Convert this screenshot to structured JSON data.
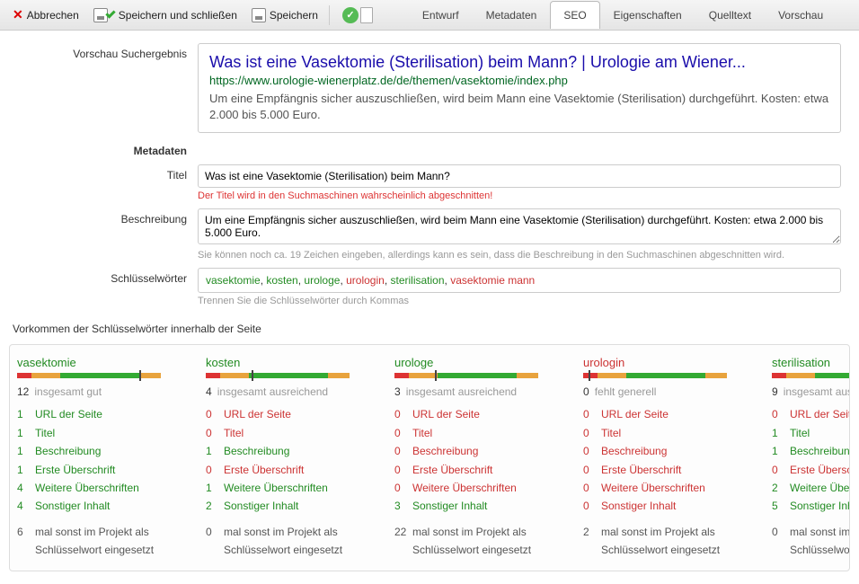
{
  "toolbar": {
    "cancel": "Abbrechen",
    "saveClose": "Speichern und schließen",
    "save": "Speichern"
  },
  "tabs": [
    "Entwurf",
    "Metadaten",
    "SEO",
    "Eigenschaften",
    "Quelltext",
    "Vorschau"
  ],
  "labels": {
    "previewResult": "Vorschau Suchergebnis",
    "metadata": "Metadaten",
    "title": "Titel",
    "description": "Beschreibung",
    "keywords": "Schlüsselwörter",
    "occurrences": "Vorkommen der Schlüsselwörter innerhalb der Seite"
  },
  "preview": {
    "title": "Was ist eine Vasektomie (Sterilisation) beim Mann? | Urologie am Wiener...",
    "url": "https://www.urologie-wienerplatz.de/de/themen/vasektomie/index.php",
    "desc": "Um eine Empfängnis sicher auszuschließen, wird beim Mann eine Vasektomie (Sterilisation) durchgeführt. Kosten: etwa 2.000 bis 5.000 Euro."
  },
  "fields": {
    "title": "Was ist eine Vasektomie (Sterilisation) beim Mann?",
    "titleHint": "Der Titel wird in den Suchmaschinen wahrscheinlich abgeschnitten!",
    "desc": "Um eine Empfängnis sicher auszuschließen, wird beim Mann eine Vasektomie (Sterilisation) durchgeführt. Kosten: etwa 2.000 bis 5.000 Euro.",
    "descHint": "Sie können noch ca. 19 Zeichen eingeben, allerdings kann es sein, dass die Beschreibung in den Suchmaschinen abgeschnitten wird.",
    "kwHint": "Trennen Sie die Schlüsselwörter durch Kommas"
  },
  "keywords": [
    {
      "text": "vasektomie",
      "cls": "kw-green"
    },
    {
      "text": "kosten",
      "cls": "kw-green"
    },
    {
      "text": "urologe",
      "cls": "kw-green"
    },
    {
      "text": "urologin",
      "cls": "kw-red"
    },
    {
      "text": "sterilisation",
      "cls": "kw-green"
    },
    {
      "text": "vasektomie mann",
      "cls": "kw-red"
    }
  ],
  "meterSegs": [
    {
      "w": 10,
      "c": "#d33"
    },
    {
      "w": 20,
      "c": "#e8a33d"
    },
    {
      "w": 55,
      "c": "#3a3"
    },
    {
      "w": 15,
      "c": "#e8a33d"
    }
  ],
  "statLabels": {
    "url": "URL der Seite",
    "title": "Titel",
    "desc": "Beschreibung",
    "h1": "Erste Überschrift",
    "hn": "Weitere Überschriften",
    "other": "Sonstiger Inhalt",
    "project": "mal sonst im Projekt als Schlüsselwort eingesetzt"
  },
  "kwStats": [
    {
      "name": "vasektomie",
      "nameCls": "c-green",
      "total": 12,
      "sumText": "insgesamt gut",
      "indPos": 85,
      "rows": [
        {
          "n": 1,
          "cls": "c-green",
          "k": "url"
        },
        {
          "n": 1,
          "cls": "c-green",
          "k": "title"
        },
        {
          "n": 1,
          "cls": "c-green",
          "k": "desc"
        },
        {
          "n": 1,
          "cls": "c-green",
          "k": "h1"
        },
        {
          "n": 4,
          "cls": "c-green",
          "k": "hn"
        },
        {
          "n": 4,
          "cls": "c-green",
          "k": "other"
        }
      ],
      "project": 6
    },
    {
      "name": "kosten",
      "nameCls": "c-green",
      "total": 4,
      "sumText": "insgesamt ausreichend",
      "indPos": 32,
      "rows": [
        {
          "n": 0,
          "cls": "c-red",
          "k": "url"
        },
        {
          "n": 0,
          "cls": "c-red",
          "k": "title"
        },
        {
          "n": 1,
          "cls": "c-green",
          "k": "desc"
        },
        {
          "n": 0,
          "cls": "c-red",
          "k": "h1"
        },
        {
          "n": 1,
          "cls": "c-green",
          "k": "hn"
        },
        {
          "n": 2,
          "cls": "c-green",
          "k": "other"
        }
      ],
      "project": 0
    },
    {
      "name": "urologe",
      "nameCls": "c-green",
      "total": 3,
      "sumText": "insgesamt ausreichend",
      "indPos": 28,
      "rows": [
        {
          "n": 0,
          "cls": "c-red",
          "k": "url"
        },
        {
          "n": 0,
          "cls": "c-red",
          "k": "title"
        },
        {
          "n": 0,
          "cls": "c-red",
          "k": "desc"
        },
        {
          "n": 0,
          "cls": "c-red",
          "k": "h1"
        },
        {
          "n": 0,
          "cls": "c-red",
          "k": "hn"
        },
        {
          "n": 3,
          "cls": "c-green",
          "k": "other"
        }
      ],
      "project": 22
    },
    {
      "name": "urologin",
      "nameCls": "c-red",
      "total": 0,
      "sumText": "fehlt generell",
      "indPos": 4,
      "rows": [
        {
          "n": 0,
          "cls": "c-red",
          "k": "url"
        },
        {
          "n": 0,
          "cls": "c-red",
          "k": "title"
        },
        {
          "n": 0,
          "cls": "c-red",
          "k": "desc"
        },
        {
          "n": 0,
          "cls": "c-red",
          "k": "h1"
        },
        {
          "n": 0,
          "cls": "c-red",
          "k": "hn"
        },
        {
          "n": 0,
          "cls": "c-red",
          "k": "other"
        }
      ],
      "project": 2
    },
    {
      "name": "sterilisation",
      "nameCls": "c-green",
      "total": 9,
      "sumText": "insgesamt ausreichend",
      "indPos": 70,
      "rows": [
        {
          "n": 0,
          "cls": "c-red",
          "k": "url"
        },
        {
          "n": 1,
          "cls": "c-green",
          "k": "title"
        },
        {
          "n": 1,
          "cls": "c-green",
          "k": "desc"
        },
        {
          "n": 0,
          "cls": "c-red",
          "k": "h1"
        },
        {
          "n": 2,
          "cls": "c-green",
          "k": "hn"
        },
        {
          "n": 5,
          "cls": "c-green",
          "k": "other"
        }
      ],
      "project": 0
    }
  ]
}
